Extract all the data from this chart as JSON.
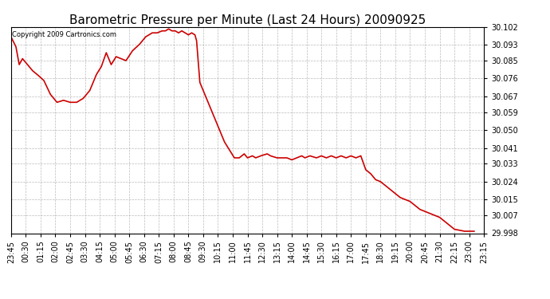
{
  "title": "Barometric Pressure per Minute (Last 24 Hours) 20090925",
  "copyright_text": "Copyright 2009 Cartronics.com",
  "line_color": "#cc0000",
  "background_color": "#ffffff",
  "plot_bg_color": "#ffffff",
  "grid_color": "#aaaaaa",
  "ylim": [
    29.998,
    30.102
  ],
  "yticks": [
    30.102,
    30.093,
    30.085,
    30.076,
    30.067,
    30.059,
    30.05,
    30.041,
    30.033,
    30.024,
    30.015,
    30.007,
    29.998
  ],
  "x_labels": [
    "23:45",
    "00:30",
    "01:15",
    "02:00",
    "02:45",
    "03:30",
    "04:15",
    "05:00",
    "05:45",
    "06:30",
    "07:15",
    "08:00",
    "08:45",
    "09:30",
    "10:15",
    "11:00",
    "11:45",
    "12:30",
    "13:15",
    "14:00",
    "14:45",
    "15:30",
    "16:15",
    "17:00",
    "17:45",
    "18:30",
    "19:15",
    "20:00",
    "20:45",
    "21:30",
    "22:15",
    "23:00",
    "23:15"
  ],
  "line_width": 1.2,
  "title_fontsize": 11,
  "tick_fontsize": 7,
  "waypoints": [
    [
      0,
      30.097
    ],
    [
      15,
      30.092
    ],
    [
      25,
      30.083
    ],
    [
      35,
      30.086
    ],
    [
      45,
      30.084
    ],
    [
      55,
      30.082
    ],
    [
      65,
      30.08
    ],
    [
      80,
      30.078
    ],
    [
      100,
      30.075
    ],
    [
      120,
      30.068
    ],
    [
      140,
      30.064
    ],
    [
      160,
      30.065
    ],
    [
      180,
      30.064
    ],
    [
      200,
      30.064
    ],
    [
      220,
      30.066
    ],
    [
      240,
      30.07
    ],
    [
      260,
      30.078
    ],
    [
      275,
      30.082
    ],
    [
      290,
      30.089
    ],
    [
      305,
      30.083
    ],
    [
      320,
      30.087
    ],
    [
      335,
      30.086
    ],
    [
      350,
      30.085
    ],
    [
      370,
      30.09
    ],
    [
      390,
      30.093
    ],
    [
      410,
      30.097
    ],
    [
      430,
      30.099
    ],
    [
      445,
      30.099
    ],
    [
      460,
      30.1
    ],
    [
      470,
      30.1
    ],
    [
      480,
      30.101
    ],
    [
      490,
      30.1
    ],
    [
      500,
      30.1
    ],
    [
      510,
      30.099
    ],
    [
      520,
      30.1
    ],
    [
      530,
      30.099
    ],
    [
      540,
      30.098
    ],
    [
      550,
      30.099
    ],
    [
      560,
      30.098
    ],
    [
      565,
      30.095
    ],
    [
      575,
      30.074
    ],
    [
      590,
      30.068
    ],
    [
      605,
      30.062
    ],
    [
      620,
      30.056
    ],
    [
      635,
      30.05
    ],
    [
      650,
      30.044
    ],
    [
      665,
      30.04
    ],
    [
      680,
      30.036
    ],
    [
      695,
      30.036
    ],
    [
      710,
      30.038
    ],
    [
      720,
      30.036
    ],
    [
      735,
      30.037
    ],
    [
      745,
      30.036
    ],
    [
      760,
      30.037
    ],
    [
      780,
      30.038
    ],
    [
      790,
      30.037
    ],
    [
      810,
      30.036
    ],
    [
      840,
      30.036
    ],
    [
      855,
      30.035
    ],
    [
      870,
      30.036
    ],
    [
      885,
      30.037
    ],
    [
      895,
      30.036
    ],
    [
      910,
      30.037
    ],
    [
      930,
      30.036
    ],
    [
      945,
      30.037
    ],
    [
      960,
      30.036
    ],
    [
      975,
      30.037
    ],
    [
      990,
      30.036
    ],
    [
      1005,
      30.037
    ],
    [
      1020,
      30.036
    ],
    [
      1035,
      30.037
    ],
    [
      1050,
      30.036
    ],
    [
      1065,
      30.037
    ],
    [
      1080,
      30.03
    ],
    [
      1095,
      30.028
    ],
    [
      1110,
      30.025
    ],
    [
      1125,
      30.024
    ],
    [
      1140,
      30.022
    ],
    [
      1155,
      30.02
    ],
    [
      1170,
      30.018
    ],
    [
      1185,
      30.016
    ],
    [
      1200,
      30.015
    ],
    [
      1215,
      30.014
    ],
    [
      1230,
      30.012
    ],
    [
      1245,
      30.01
    ],
    [
      1260,
      30.009
    ],
    [
      1275,
      30.008
    ],
    [
      1290,
      30.007
    ],
    [
      1305,
      30.006
    ],
    [
      1320,
      30.004
    ],
    [
      1335,
      30.002
    ],
    [
      1350,
      30.0
    ],
    [
      1380,
      29.999
    ],
    [
      1410,
      29.999
    ]
  ]
}
